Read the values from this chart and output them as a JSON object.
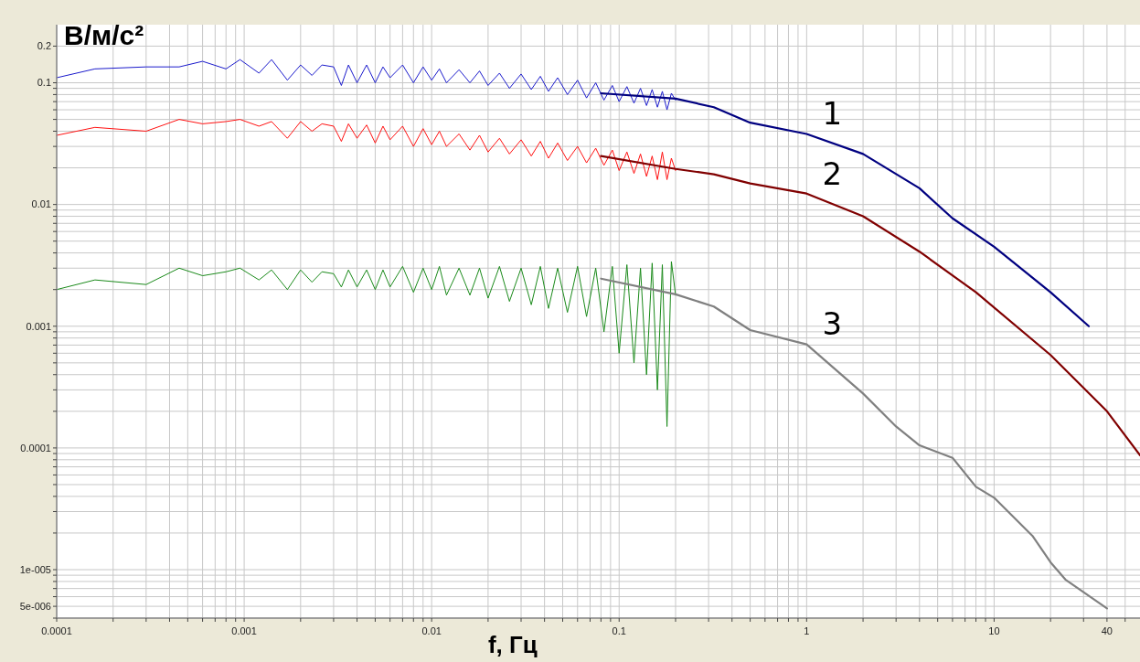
{
  "chart_data": {
    "type": "line",
    "xlabel": "f, Гц",
    "ylabel": "В/м/с²",
    "log": "xy",
    "grid": true,
    "xlim": [
      0.0001,
      60
    ],
    "ylim": [
      4e-06,
      0.3
    ],
    "xticks": [
      0.0001,
      {
        "value": 0.0002,
        "label": null
      },
      {
        "value": 0.0003,
        "label": null
      },
      {
        "value": 0.0004,
        "label": null
      },
      {
        "value": 0.0005,
        "label": null
      },
      {
        "value": 0.0006,
        "label": null
      },
      {
        "value": 0.0007,
        "label": null
      },
      {
        "value": 0.0008,
        "label": null
      },
      {
        "value": 0.0009,
        "label": null
      },
      0.001,
      {
        "value": 0.002,
        "label": null
      },
      {
        "value": 0.003,
        "label": null
      },
      {
        "value": 0.004,
        "label": null
      },
      {
        "value": 0.005,
        "label": null
      },
      {
        "value": 0.006,
        "label": null
      },
      {
        "value": 0.007,
        "label": null
      },
      {
        "value": 0.008,
        "label": null
      },
      {
        "value": 0.009,
        "label": null
      },
      0.01,
      {
        "value": 0.02,
        "label": null
      },
      {
        "value": 0.03,
        "label": null
      },
      {
        "value": 0.04,
        "label": null
      },
      {
        "value": 0.05,
        "label": null
      },
      {
        "value": 0.06,
        "label": null
      },
      {
        "value": 0.07,
        "label": null
      },
      {
        "value": 0.08,
        "label": null
      },
      {
        "value": 0.09,
        "label": null
      },
      0.1,
      {
        "value": 0.2,
        "label": null
      },
      {
        "value": 0.3,
        "label": null
      },
      {
        "value": 0.4,
        "label": null
      },
      {
        "value": 0.5,
        "label": null
      },
      {
        "value": 0.6,
        "label": null
      },
      {
        "value": 0.7,
        "label": null
      },
      {
        "value": 0.8,
        "label": null
      },
      {
        "value": 0.9,
        "label": null
      },
      1,
      {
        "value": 2,
        "label": null
      },
      {
        "value": 3,
        "label": null
      },
      {
        "value": 4,
        "label": null
      },
      {
        "value": 5,
        "label": null
      },
      {
        "value": 6,
        "label": null
      },
      {
        "value": 7,
        "label": null
      },
      {
        "value": 8,
        "label": null
      },
      {
        "value": 9,
        "label": null
      },
      10,
      {
        "value": 20,
        "label": null
      },
      {
        "value": 30,
        "label": null
      },
      40,
      {
        "value": 50,
        "label": null
      }
    ],
    "yticks": [
      {
        "value": 4e-06,
        "label": null
      },
      {
        "value": 5e-06,
        "label": "5e-006"
      },
      {
        "value": 6e-06,
        "label": null
      },
      {
        "value": 7e-06,
        "label": null
      },
      {
        "value": 8e-06,
        "label": null
      },
      {
        "value": 9e-06,
        "label": null
      },
      {
        "value": 1e-05,
        "label": "1e-005"
      },
      {
        "value": 2e-05,
        "label": null
      },
      {
        "value": 3e-05,
        "label": null
      },
      {
        "value": 4e-05,
        "label": null
      },
      {
        "value": 5e-05,
        "label": null
      },
      {
        "value": 6e-05,
        "label": null
      },
      {
        "value": 7e-05,
        "label": null
      },
      {
        "value": 8e-05,
        "label": null
      },
      {
        "value": 9e-05,
        "label": null
      },
      0.0001,
      {
        "value": 0.0002,
        "label": null
      },
      {
        "value": 0.0003,
        "label": null
      },
      {
        "value": 0.0004,
        "label": null
      },
      {
        "value": 0.0005,
        "label": null
      },
      {
        "value": 0.0006,
        "label": null
      },
      {
        "value": 0.0007,
        "label": null
      },
      {
        "value": 0.0008,
        "label": null
      },
      {
        "value": 0.0009,
        "label": null
      },
      0.001,
      {
        "value": 0.002,
        "label": null
      },
      {
        "value": 0.003,
        "label": null
      },
      {
        "value": 0.004,
        "label": null
      },
      {
        "value": 0.005,
        "label": null
      },
      {
        "value": 0.006,
        "label": null
      },
      {
        "value": 0.007,
        "label": null
      },
      {
        "value": 0.008,
        "label": null
      },
      {
        "value": 0.009,
        "label": null
      },
      0.01,
      {
        "value": 0.02,
        "label": null
      },
      {
        "value": 0.03,
        "label": null
      },
      {
        "value": 0.04,
        "label": null
      },
      {
        "value": 0.05,
        "label": null
      },
      {
        "value": 0.06,
        "label": null
      },
      {
        "value": 0.07,
        "label": null
      },
      {
        "value": 0.08,
        "label": null
      },
      {
        "value": 0.09,
        "label": null
      },
      0.1,
      0.2
    ],
    "series": [
      {
        "color": "#1a1acc",
        "x": [
          0.0001,
          0.00016,
          0.0003,
          0.00045,
          0.0006,
          0.0008,
          0.00095,
          0.0012,
          0.0014,
          0.0017,
          0.002,
          0.0023,
          0.0026,
          0.003,
          0.0033,
          0.0036,
          0.004,
          0.0045,
          0.005,
          0.0055,
          0.006,
          0.007,
          0.008,
          0.009,
          0.01,
          0.011,
          0.012,
          0.014,
          0.016,
          0.018,
          0.02,
          0.023,
          0.026,
          0.03,
          0.034,
          0.038,
          0.042,
          0.047,
          0.053,
          0.06,
          0.067,
          0.075,
          0.083,
          0.092,
          0.1,
          0.11,
          0.12,
          0.13,
          0.14,
          0.15,
          0.16,
          0.17,
          0.18,
          0.19,
          0.2
        ],
        "values": [
          0.11,
          0.13,
          0.135,
          0.135,
          0.15,
          0.13,
          0.155,
          0.12,
          0.155,
          0.105,
          0.14,
          0.115,
          0.14,
          0.135,
          0.095,
          0.14,
          0.1,
          0.14,
          0.1,
          0.135,
          0.11,
          0.14,
          0.1,
          0.135,
          0.105,
          0.13,
          0.1,
          0.128,
          0.1,
          0.125,
          0.095,
          0.12,
          0.09,
          0.118,
          0.088,
          0.113,
          0.085,
          0.11,
          0.08,
          0.105,
          0.075,
          0.1,
          0.072,
          0.095,
          0.07,
          0.093,
          0.068,
          0.09,
          0.065,
          0.088,
          0.063,
          0.085,
          0.06,
          0.082,
          0.072
        ]
      },
      {
        "color": "#ff1010",
        "x": [
          0.0001,
          0.00016,
          0.0003,
          0.00045,
          0.0006,
          0.0008,
          0.00095,
          0.0012,
          0.0014,
          0.0017,
          0.002,
          0.0023,
          0.0026,
          0.003,
          0.0033,
          0.0036,
          0.004,
          0.0045,
          0.005,
          0.0055,
          0.006,
          0.007,
          0.008,
          0.009,
          0.01,
          0.011,
          0.012,
          0.014,
          0.016,
          0.018,
          0.02,
          0.023,
          0.026,
          0.03,
          0.034,
          0.038,
          0.042,
          0.047,
          0.053,
          0.06,
          0.067,
          0.075,
          0.083,
          0.092,
          0.1,
          0.11,
          0.12,
          0.13,
          0.14,
          0.15,
          0.16,
          0.17,
          0.18,
          0.19,
          0.2
        ],
        "values": [
          0.037,
          0.043,
          0.04,
          0.05,
          0.046,
          0.048,
          0.05,
          0.044,
          0.048,
          0.035,
          0.048,
          0.04,
          0.046,
          0.044,
          0.033,
          0.046,
          0.035,
          0.045,
          0.032,
          0.044,
          0.034,
          0.044,
          0.03,
          0.042,
          0.031,
          0.04,
          0.03,
          0.038,
          0.028,
          0.037,
          0.027,
          0.035,
          0.026,
          0.034,
          0.025,
          0.033,
          0.024,
          0.032,
          0.023,
          0.03,
          0.022,
          0.029,
          0.021,
          0.028,
          0.019,
          0.027,
          0.018,
          0.026,
          0.017,
          0.025,
          0.016,
          0.027,
          0.016,
          0.024,
          0.019
        ]
      },
      {
        "color": "#1a8a1a",
        "x": [
          0.0001,
          0.00016,
          0.0003,
          0.00045,
          0.0006,
          0.0008,
          0.00095,
          0.0012,
          0.0014,
          0.0017,
          0.002,
          0.0023,
          0.0026,
          0.003,
          0.0033,
          0.0036,
          0.004,
          0.0045,
          0.005,
          0.0055,
          0.006,
          0.007,
          0.008,
          0.009,
          0.01,
          0.011,
          0.012,
          0.014,
          0.016,
          0.018,
          0.02,
          0.023,
          0.026,
          0.03,
          0.034,
          0.038,
          0.042,
          0.047,
          0.053,
          0.06,
          0.067,
          0.075,
          0.083,
          0.092,
          0.1,
          0.11,
          0.12,
          0.13,
          0.14,
          0.15,
          0.16,
          0.17,
          0.18,
          0.19,
          0.2
        ],
        "values": [
          0.002,
          0.0024,
          0.0022,
          0.003,
          0.0026,
          0.0028,
          0.003,
          0.0024,
          0.0029,
          0.002,
          0.0029,
          0.0023,
          0.0028,
          0.0027,
          0.0021,
          0.0029,
          0.0021,
          0.0029,
          0.002,
          0.0029,
          0.0021,
          0.0031,
          0.0019,
          0.003,
          0.002,
          0.0031,
          0.0018,
          0.003,
          0.0018,
          0.003,
          0.0017,
          0.0031,
          0.0016,
          0.003,
          0.0015,
          0.0031,
          0.0014,
          0.003,
          0.0013,
          0.0031,
          0.0012,
          0.003,
          0.0009,
          0.0031,
          0.0006,
          0.0032,
          0.0005,
          0.003,
          0.0004,
          0.0033,
          0.0003,
          0.0032,
          0.00015,
          0.0034,
          0.0018
        ]
      },
      {
        "name": "1",
        "color": "#000080",
        "x": [
          0.08,
          0.2,
          0.32,
          0.5,
          1,
          2,
          4,
          6,
          10,
          20,
          32
        ],
        "values": [
          0.082,
          0.074,
          0.063,
          0.047,
          0.038,
          0.026,
          0.0136,
          0.0077,
          0.0045,
          0.0019,
          0.001
        ]
      },
      {
        "name": "2",
        "color": "#800000",
        "x": [
          0.08,
          0.2,
          0.32,
          0.5,
          1,
          2,
          4,
          8,
          20,
          40,
          60
        ],
        "values": [
          0.025,
          0.0196,
          0.0177,
          0.0149,
          0.0123,
          0.008,
          0.0041,
          0.0019,
          0.00058,
          0.0002,
          8.7e-05
        ]
      },
      {
        "name": "3",
        "color": "#808080",
        "x": [
          0.08,
          0.2,
          0.32,
          0.5,
          1,
          2,
          3,
          4,
          6,
          8,
          10,
          16,
          20,
          24,
          40
        ],
        "values": [
          0.00246,
          0.00183,
          0.00145,
          0.00093,
          0.00071,
          0.00028,
          0.00015,
          0.000105,
          8.3e-05,
          4.8e-05,
          3.9e-05,
          1.9e-05,
          1.15e-05,
          8.3e-06,
          4.8e-06
        ]
      }
    ]
  }
}
